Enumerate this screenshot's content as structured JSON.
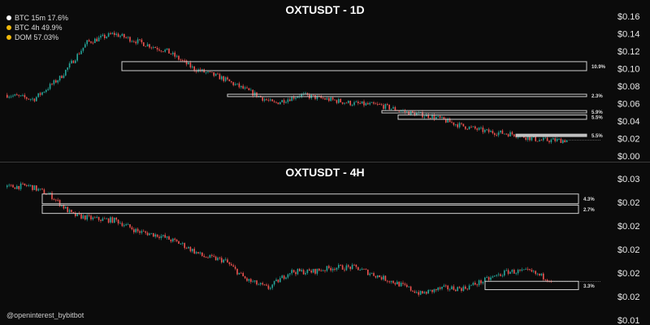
{
  "legend": [
    {
      "label": "BTC 15m 17.6%",
      "color": "#ffffff"
    },
    {
      "label": "BTC 4h 49.9%",
      "color": "#f0b90b"
    },
    {
      "label": "DOM 57.03%",
      "color": "#f0b90b"
    }
  ],
  "watermark": "@openinterest_bybitbot",
  "colors": {
    "up": "#26a69a",
    "down": "#ef5350",
    "background": "#0b0b0b",
    "zone": "#cfcfcf"
  },
  "chart_data": [
    {
      "type": "candlestick",
      "title": "OXTUSDT - 1D",
      "ylim": [
        0,
        0.16
      ],
      "yticks": [
        0,
        0.02,
        0.04,
        0.06,
        0.08,
        0.1,
        0.12,
        0.14,
        0.16
      ],
      "ytick_labels": [
        "$0.00",
        "$0.02",
        "$0.04",
        "$0.06",
        "$0.08",
        "$0.10",
        "$0.12",
        "$0.14",
        "$0.16"
      ],
      "grid": false,
      "closes": [
        0.07,
        0.065,
        0.09,
        0.13,
        0.14,
        0.13,
        0.12,
        0.1,
        0.09,
        0.075,
        0.06,
        0.07,
        0.065,
        0.06,
        0.058,
        0.05,
        0.045,
        0.035,
        0.028,
        0.025,
        0.018,
        0.018
      ],
      "zones": [
        {
          "low": 0.0977,
          "high": 0.108,
          "label": "10.9%"
        },
        {
          "low": 0.068,
          "high": 0.0707,
          "label": "2.3%"
        },
        {
          "low": 0.0493,
          "high": 0.052,
          "label": "5.9%"
        },
        {
          "low": 0.042,
          "high": 0.047,
          "label": "5.5%"
        },
        {
          "low": 0.0223,
          "high": 0.025,
          "label": "5.5%"
        }
      ]
    },
    {
      "type": "candlestick",
      "title": "OXTUSDT - 4H",
      "ylim": [
        0.0149,
        0.0251
      ],
      "yticks": [
        0.0251,
        0.0234,
        0.0217,
        0.02,
        0.0183,
        0.0166,
        0.0149
      ],
      "ytick_labels": [
        "$0.03",
        "$0.02",
        "$0.02",
        "$0.02",
        "$0.02",
        "$0.02",
        "$0.01"
      ],
      "grid": false,
      "closes": [
        0.0245,
        0.0246,
        0.0239,
        0.0225,
        0.0222,
        0.0221,
        0.0213,
        0.021,
        0.0204,
        0.0195,
        0.0192,
        0.0178,
        0.0172,
        0.0184,
        0.0184,
        0.0187,
        0.0187,
        0.0181,
        0.0175,
        0.0168,
        0.0172,
        0.0172,
        0.0178,
        0.0184,
        0.0184,
        0.0178
      ],
      "zones": [
        {
          "low": 0.0233,
          "high": 0.024,
          "label": "4.3%"
        },
        {
          "low": 0.0226,
          "high": 0.0232,
          "label": "2.7%"
        },
        {
          "low": 0.0171,
          "high": 0.0177,
          "label": "3.3%"
        }
      ]
    }
  ]
}
